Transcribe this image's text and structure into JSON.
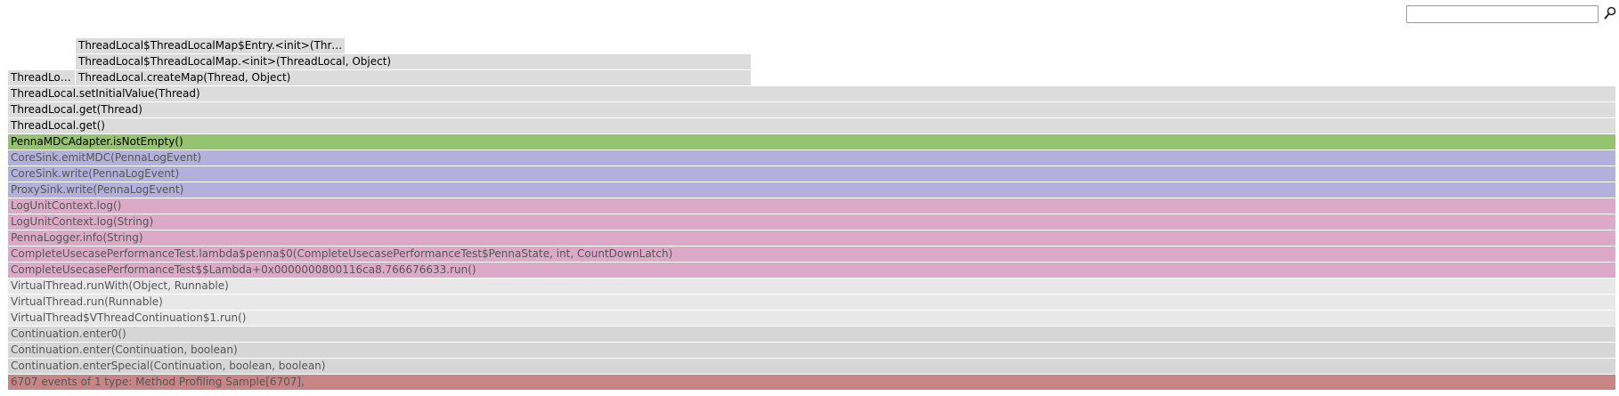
{
  "search": {
    "value": "",
    "placeholder": "",
    "icon": "search-icon"
  },
  "frames": [
    {
      "label": "ThreadLocal$ThreadLocalMap$Entry.<init>(Thread...",
      "color": "#dcdcdc",
      "dim": false
    },
    {
      "label": "ThreadLocal$ThreadLocalMap.<init>(ThreadLocal, Object)",
      "color": "#dcdcdc",
      "dim": false
    },
    {
      "label": "ThreadLoc...",
      "color": "#dcdcdc",
      "dim": false
    },
    {
      "label": "ThreadLocal.createMap(Thread, Object)",
      "color": "#dcdcdc",
      "dim": false
    },
    {
      "label": "ThreadLocal.setInitialValue(Thread)",
      "color": "#dcdcdc",
      "dim": false
    },
    {
      "label": "ThreadLocal.get(Thread)",
      "color": "#dcdcdc",
      "dim": false
    },
    {
      "label": "ThreadLocal.get()",
      "color": "#dcdcdc",
      "dim": false
    },
    {
      "label": "PennaMDCAdapter.isNotEmpty()",
      "color": "#96c46e",
      "dim": false
    },
    {
      "label": "CoreSink.emitMDC(PennaLogEvent)",
      "color": "#b4b0dc",
      "dim": true
    },
    {
      "label": "CoreSink.write(PennaLogEvent)",
      "color": "#b4b0dc",
      "dim": true
    },
    {
      "label": "ProxySink.write(PennaLogEvent)",
      "color": "#b4b0dc",
      "dim": true
    },
    {
      "label": "LogUnitContext.log()",
      "color": "#dcaac8",
      "dim": true
    },
    {
      "label": "LogUnitContext.log(String)",
      "color": "#dcaac8",
      "dim": true
    },
    {
      "label": "PennaLogger.info(String)",
      "color": "#dcaac8",
      "dim": true
    },
    {
      "label": "CompleteUsecasePerformanceTest.lambda$penna$0(CompleteUsecasePerformanceTest$PennaState, int, CountDownLatch)",
      "color": "#dcaac8",
      "dim": true
    },
    {
      "label": "CompleteUsecasePerformanceTest$$Lambda+0x0000000800116ca8.766676633.run()",
      "color": "#dcaac8",
      "dim": true
    },
    {
      "label": "VirtualThread.runWith(Object, Runnable)",
      "color": "#e8e8e8",
      "dim": true
    },
    {
      "label": "VirtualThread.run(Runnable)",
      "color": "#e8e8e8",
      "dim": true
    },
    {
      "label": "VirtualThread$VThreadContinuation$1.run()",
      "color": "#e8e8e8",
      "dim": true
    },
    {
      "label": "Continuation.enter0()",
      "color": "#d6d6d6",
      "dim": true
    },
    {
      "label": "Continuation.enter(Continuation, boolean)",
      "color": "#d6d6d6",
      "dim": true
    },
    {
      "label": "Continuation.enterSpecial(Continuation, boolean, boolean)",
      "color": "#d6d6d6",
      "dim": true
    },
    {
      "label": "6707 events of 1 type: Method Profiling Sample[6707],",
      "color": "#c98585",
      "dim": true
    }
  ]
}
